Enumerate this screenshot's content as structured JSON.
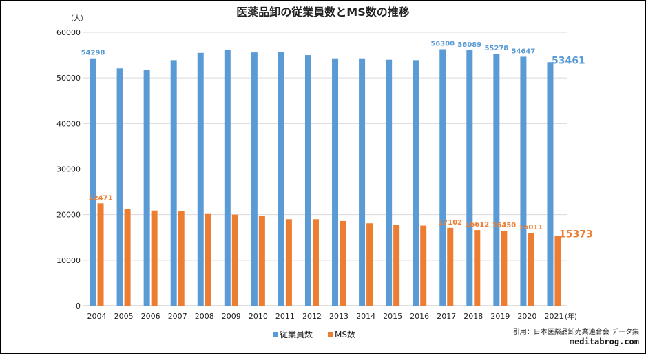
{
  "chart_data": {
    "type": "bar",
    "title": "医薬品卸の従業員数とMS数の推移",
    "y_unit": "（人）",
    "x_unit": "(年)",
    "ylim": [
      0,
      60000
    ],
    "yticks": [
      0,
      10000,
      20000,
      30000,
      40000,
      50000,
      60000
    ],
    "grid": true,
    "legend_position": "bottom",
    "categories": [
      "2004",
      "2005",
      "2006",
      "2007",
      "2008",
      "2009",
      "2010",
      "2011",
      "2012",
      "2013",
      "2014",
      "2015",
      "2016",
      "2017",
      "2018",
      "2019",
      "2020",
      "2021"
    ],
    "series": [
      {
        "name": "従業員数",
        "color": "#5B9BD5",
        "values": [
          54298,
          52100,
          51700,
          53900,
          55500,
          56200,
          55600,
          55700,
          55000,
          54300,
          54300,
          54000,
          53900,
          56300,
          56089,
          55278,
          54647,
          53461
        ],
        "data_labels": {
          "0": "54298",
          "13": "56300",
          "14": "56089",
          "15": "55278",
          "16": "54647",
          "17": "53461"
        }
      },
      {
        "name": "MS数",
        "color": "#ED7D31",
        "values": [
          22471,
          21300,
          20900,
          20800,
          20300,
          20000,
          19800,
          19000,
          19000,
          18600,
          18100,
          17700,
          17600,
          17102,
          16612,
          16450,
          16011,
          15373
        ],
        "data_labels": {
          "0": "22471",
          "13": "17102",
          "14": "16612",
          "15": "16450",
          "16": "16011",
          "17": "15373"
        }
      }
    ]
  },
  "footer": {
    "source": "引用：日本医薬品卸売業連合会 データ集",
    "site": "meditabrog.com"
  }
}
